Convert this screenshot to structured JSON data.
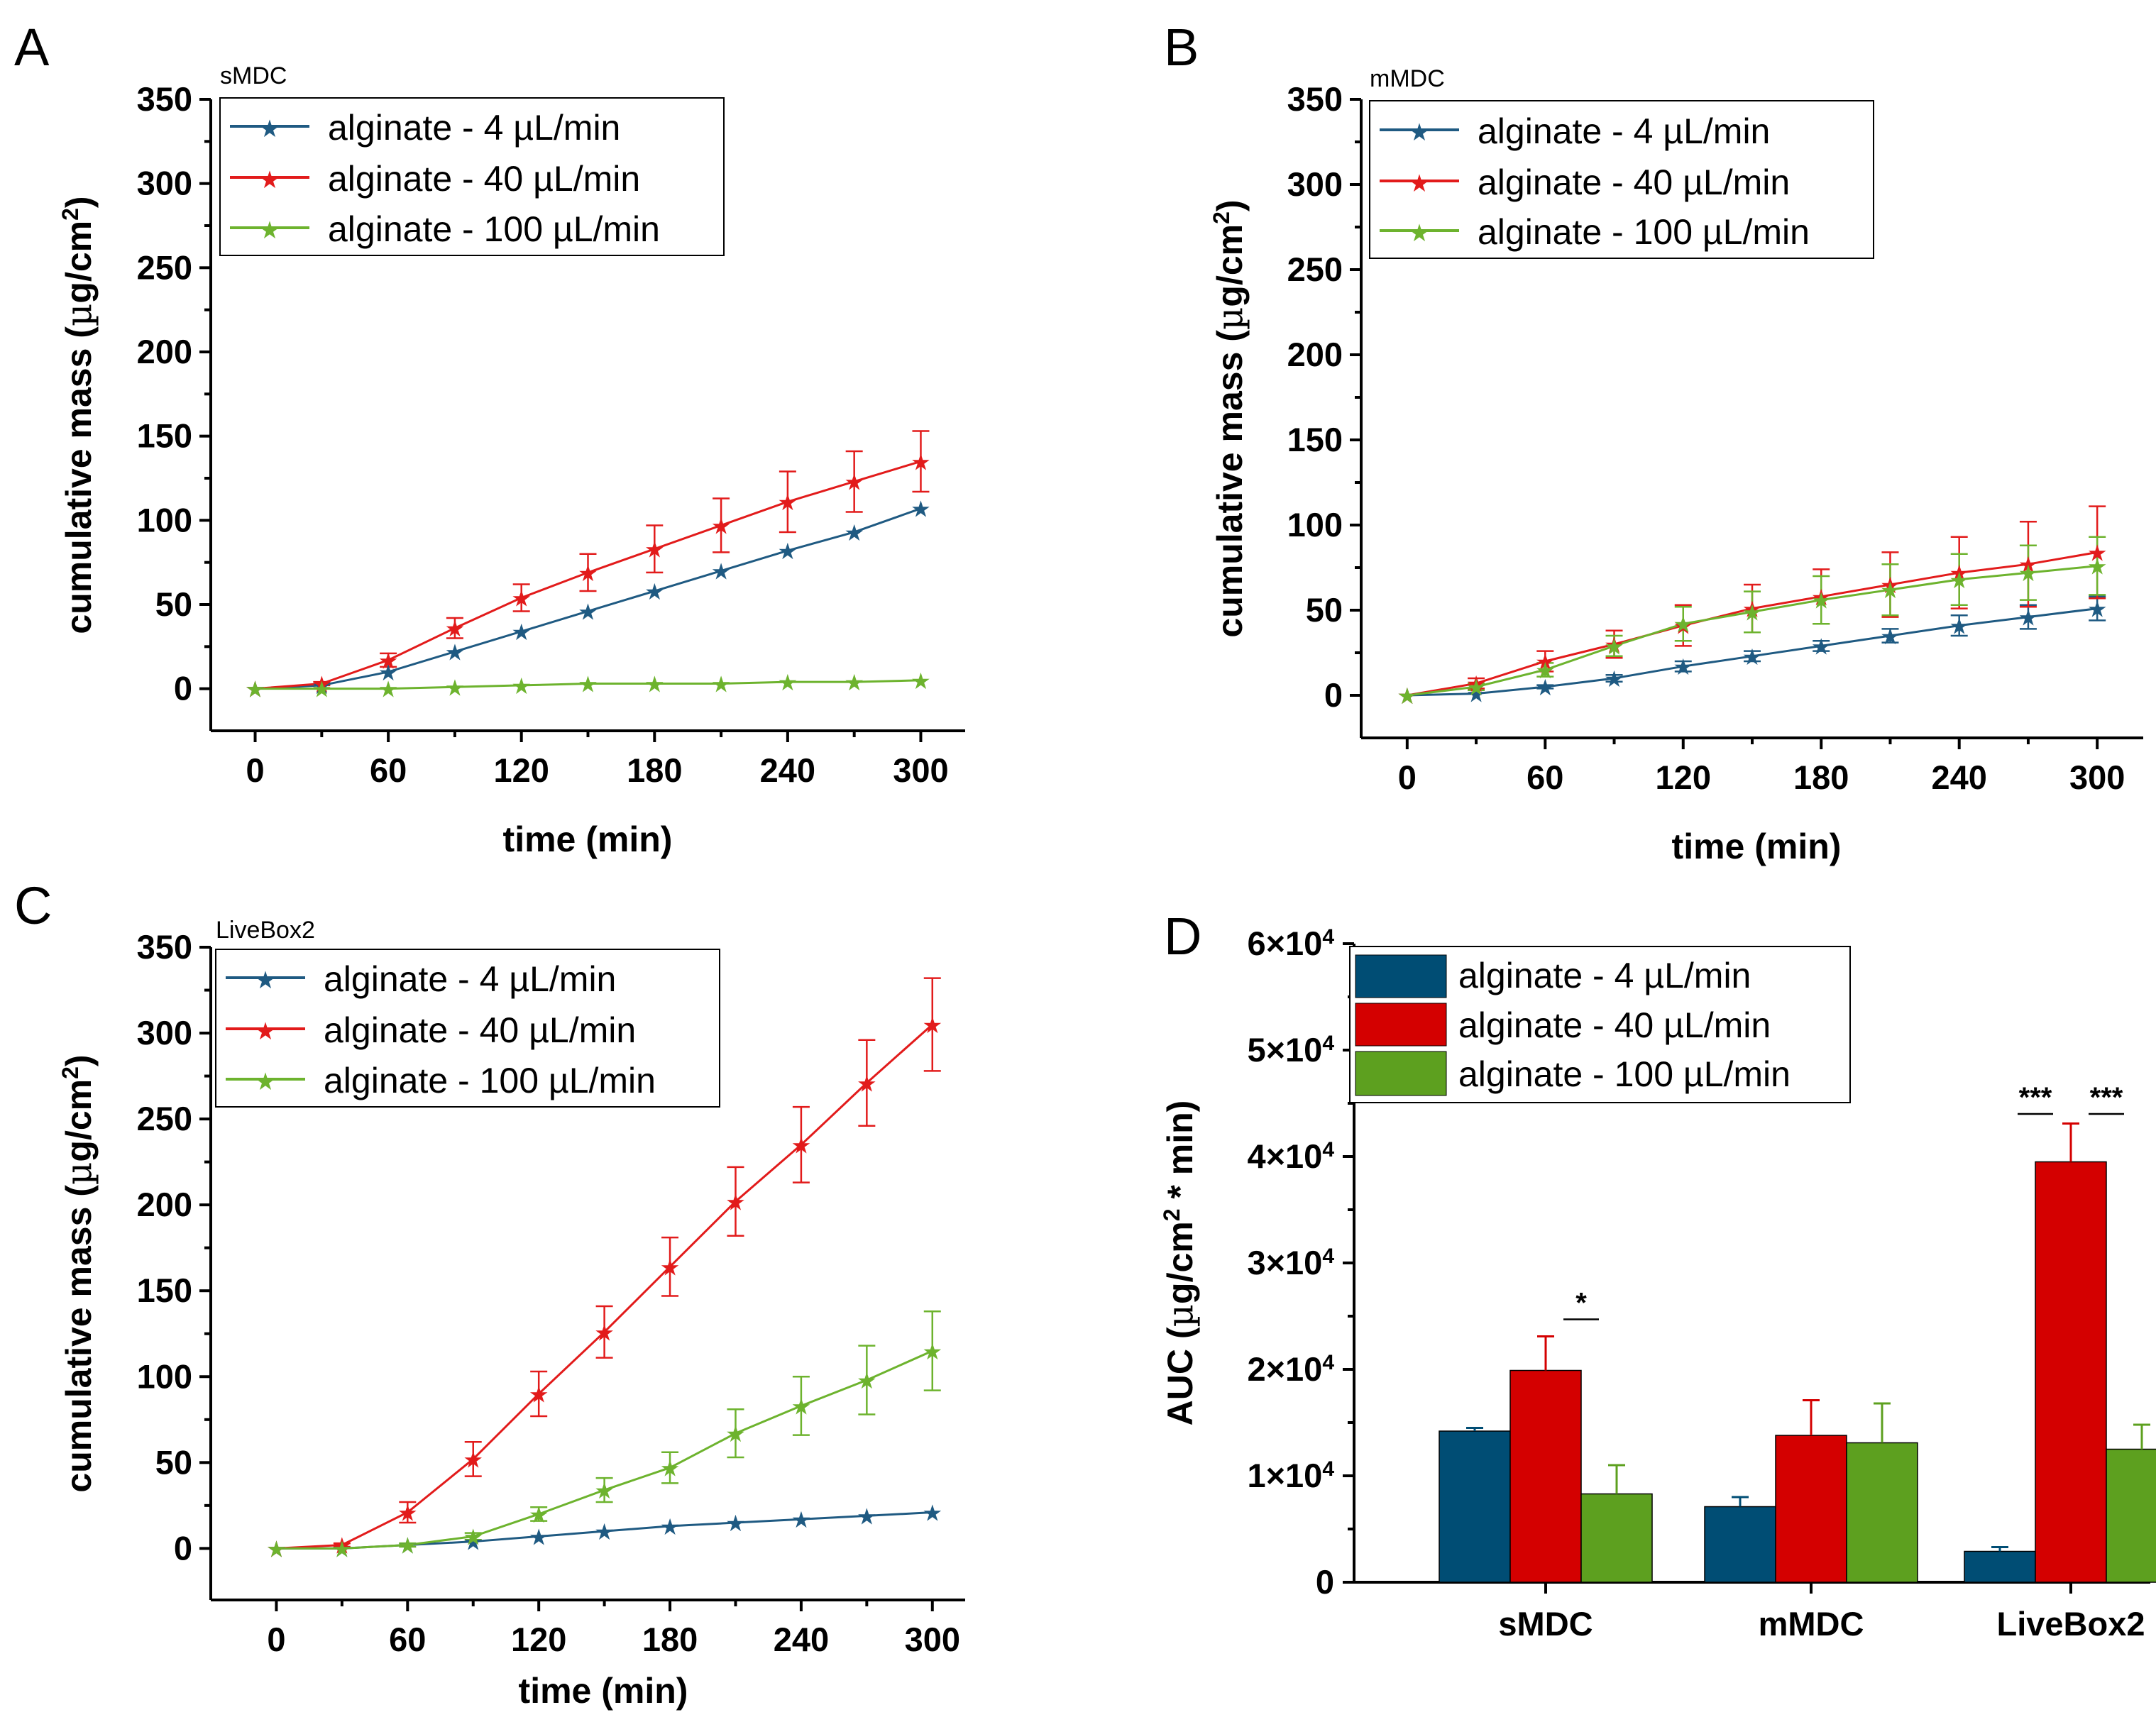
{
  "colors": {
    "blue": "#1F5A82",
    "red": "#E21B1B",
    "green": "#6DB32E",
    "bar_blue": "#004D74",
    "bar_red": "#D40000",
    "bar_green": "#5DA01F"
  },
  "chart_data": [
    {
      "id": "A",
      "type": "line",
      "panel_label": "A",
      "subtitle": "sMDC",
      "xlabel": "time (min)",
      "ylabel": "cumulative mass (µg/cm²)",
      "ylabel_main": "cumulative mass (",
      "ylabel_mu": "µ",
      "ylabel_unit": "g/cm",
      "ylabel_sup": "2",
      "ylabel_close": ")",
      "xlim": [
        -20,
        320
      ],
      "ylim": [
        -25,
        350
      ],
      "xticks": [
        "0",
        "60",
        "120",
        "180",
        "240",
        "300"
      ],
      "yticks": [
        "0",
        "50",
        "100",
        "150",
        "200",
        "250",
        "300",
        "350"
      ],
      "x": [
        0,
        30,
        60,
        90,
        120,
        150,
        180,
        210,
        240,
        270,
        300
      ],
      "series": [
        {
          "name": "alginate - 4 µL/min",
          "color": "#1F5A82",
          "values": [
            0,
            2,
            10,
            22,
            34,
            46,
            58,
            70,
            82,
            93,
            107
          ],
          "errors": [
            0,
            0,
            0,
            0,
            0,
            0,
            0,
            0,
            0,
            0,
            0
          ]
        },
        {
          "name": "alginate - 40 µL/min",
          "color": "#E21B1B",
          "values": [
            0,
            3,
            17,
            36,
            54,
            69,
            83,
            97,
            111,
            123,
            135
          ],
          "errors": [
            0,
            1,
            4,
            6,
            8,
            11,
            14,
            16,
            18,
            18,
            18
          ]
        },
        {
          "name": "alginate - 100 µL/min",
          "color": "#6DB32E",
          "values": [
            0,
            0,
            0,
            1,
            2,
            3,
            3,
            3,
            4,
            4,
            5
          ],
          "errors": [
            0,
            0,
            0,
            0,
            0,
            0,
            0,
            0,
            0,
            0,
            0
          ]
        }
      ]
    },
    {
      "id": "B",
      "type": "line",
      "panel_label": "B",
      "subtitle": "mMDC",
      "xlabel": "time (min)",
      "ylabel": "cumulative mass (µg/cm²)",
      "ylabel_main": "cumulative mass (",
      "ylabel_mu": "µ",
      "ylabel_unit": "g/cm",
      "ylabel_sup": "2",
      "ylabel_close": ")",
      "xlim": [
        -20,
        320
      ],
      "ylim": [
        -25,
        350
      ],
      "xticks": [
        "0",
        "60",
        "120",
        "180",
        "240",
        "300"
      ],
      "yticks": [
        "0",
        "50",
        "100",
        "150",
        "200",
        "250",
        "300",
        "350"
      ],
      "x": [
        0,
        30,
        60,
        90,
        120,
        150,
        180,
        210,
        240,
        270,
        300
      ],
      "series": [
        {
          "name": "alginate - 4 µL/min",
          "color": "#1F5A82",
          "values": [
            0,
            1,
            5,
            10,
            17,
            23,
            29,
            35,
            41,
            46,
            51
          ],
          "errors": [
            0,
            0,
            1,
            2,
            3,
            3,
            3,
            4,
            6,
            7,
            7
          ]
        },
        {
          "name": "alginate - 40 µL/min",
          "color": "#E21B1B",
          "values": [
            0,
            7,
            20,
            30,
            41,
            51,
            58,
            65,
            72,
            77,
            84
          ],
          "errors": [
            0,
            3,
            6,
            8,
            12,
            14,
            16,
            19,
            21,
            25,
            27
          ]
        },
        {
          "name": "alginate - 100 µL/min",
          "color": "#6DB32E",
          "values": [
            0,
            5,
            15,
            29,
            42,
            49,
            56,
            62,
            68,
            72,
            76
          ],
          "errors": [
            0,
            2,
            4,
            6,
            10,
            12,
            14,
            15,
            15,
            16,
            17
          ]
        }
      ]
    },
    {
      "id": "C",
      "type": "line",
      "panel_label": "C",
      "subtitle": "LiveBox2",
      "xlabel": "time (min)",
      "ylabel": "cumulative mass (µg/cm²)",
      "ylabel_main": "cumulative mass (",
      "ylabel_mu": "µ",
      "ylabel_unit": "g/cm",
      "ylabel_sup": "2",
      "ylabel_close": ")",
      "xlim": [
        -30,
        315
      ],
      "ylim": [
        -30,
        350
      ],
      "xticks": [
        "0",
        "60",
        "120",
        "180",
        "240",
        "300"
      ],
      "yticks": [
        "0",
        "50",
        "100",
        "150",
        "200",
        "250",
        "300",
        "350"
      ],
      "x": [
        0,
        30,
        60,
        90,
        120,
        150,
        180,
        210,
        240,
        270,
        300
      ],
      "series": [
        {
          "name": "alginate - 4 µL/min",
          "color": "#1F5A82",
          "values": [
            0,
            0,
            2,
            4,
            7,
            10,
            13,
            15,
            17,
            19,
            21
          ],
          "errors": [
            0,
            0,
            0,
            0,
            0,
            0,
            0,
            0,
            0,
            0,
            0
          ]
        },
        {
          "name": "alginate - 40 µL/min",
          "color": "#E21B1B",
          "values": [
            0,
            2,
            21,
            52,
            90,
            126,
            164,
            202,
            235,
            271,
            305
          ],
          "errors": [
            0,
            1,
            6,
            10,
            13,
            15,
            17,
            20,
            22,
            25,
            27
          ]
        },
        {
          "name": "alginate - 100 µL/min",
          "color": "#6DB32E",
          "values": [
            0,
            0,
            2,
            7,
            20,
            34,
            47,
            67,
            83,
            98,
            115
          ],
          "errors": [
            0,
            0,
            1,
            2,
            4,
            7,
            9,
            14,
            17,
            20,
            23
          ]
        }
      ]
    },
    {
      "id": "D",
      "type": "bar",
      "panel_label": "D",
      "xlabel": "",
      "ylabel": "AUC (µg/cm² * min)",
      "ylabel_main": "AUC (",
      "ylabel_mu": "µ",
      "ylabel_unit": "g/cm",
      "ylabel_sup": "2",
      "ylabel_close": " * min)",
      "ylim": [
        0,
        60000
      ],
      "yticks": [
        {
          "base": "0",
          "exp": ""
        },
        {
          "base": "1×10",
          "exp": "4"
        },
        {
          "base": "2×10",
          "exp": "4"
        },
        {
          "base": "3×10",
          "exp": "4"
        },
        {
          "base": "4×10",
          "exp": "4"
        },
        {
          "base": "5×10",
          "exp": "4"
        },
        {
          "base": "6×10",
          "exp": "4"
        }
      ],
      "categories": [
        "sMDC",
        "mMDC",
        "LiveBox2"
      ],
      "series": [
        {
          "name": "alginate - 4 µL/min",
          "color": "#004D74",
          "values": [
            14200,
            7100,
            2900
          ],
          "errors": [
            300,
            900,
            400
          ]
        },
        {
          "name": "alginate - 40 µL/min",
          "color": "#D40000",
          "values": [
            19900,
            13800,
            39500
          ],
          "errors": [
            3200,
            3300,
            3600
          ]
        },
        {
          "name": "alginate - 100 µL/min",
          "color": "#5DA01F",
          "values": [
            8300,
            13100,
            12500
          ],
          "errors": [
            2700,
            3700,
            2300
          ]
        }
      ],
      "annotations": [
        {
          "text": "*",
          "category": 0,
          "from_series": 1,
          "to_series": 2,
          "y": 24700
        },
        {
          "text": "***",
          "category": 2,
          "from_series": 0,
          "to_series": 1,
          "y": 44000
        },
        {
          "text": "***",
          "category": 2,
          "from_series": 1,
          "to_series": 2,
          "y": 44000
        }
      ]
    }
  ]
}
